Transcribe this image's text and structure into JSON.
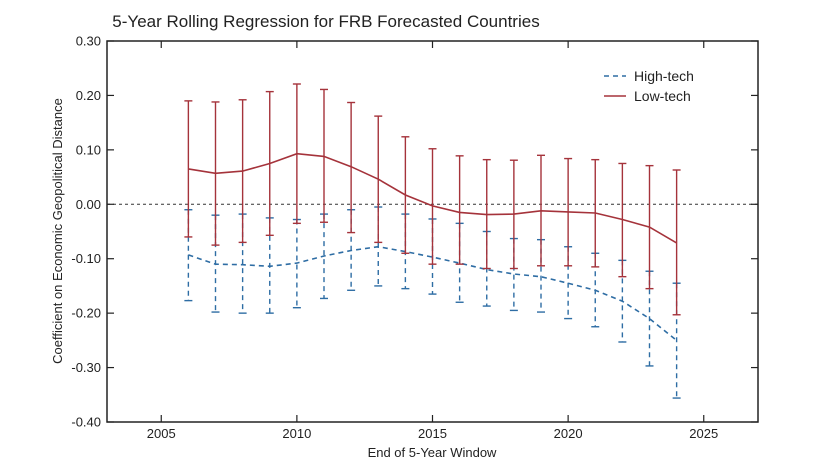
{
  "chart_data": {
    "type": "line",
    "title": "5-Year Rolling Regression for FRB Forecasted Countries",
    "xlabel": "End of 5-Year Window",
    "ylabel": "Coefficient on Economic Geopolitical Distance",
    "xlim": [
      2003,
      2027
    ],
    "ylim": [
      -0.4,
      0.3
    ],
    "x_ticks": [
      2005,
      2010,
      2015,
      2020,
      2025
    ],
    "y_ticks": [
      -0.4,
      -0.3,
      -0.2,
      -0.1,
      0.0,
      0.1,
      0.2,
      0.3
    ],
    "y_tick_labels": [
      "-0.40",
      "-0.30",
      "-0.20",
      "-0.10",
      "0.00",
      "0.10",
      "0.20",
      "0.30"
    ],
    "x": [
      2006,
      2007,
      2008,
      2009,
      2010,
      2011,
      2012,
      2013,
      2014,
      2015,
      2016,
      2017,
      2018,
      2019,
      2020,
      2021,
      2022,
      2023,
      2024
    ],
    "zero_line": true,
    "legend_position": "top-right",
    "series": [
      {
        "name": "High-tech",
        "color": "#2e6da4",
        "dash": true,
        "values": [
          -0.093,
          -0.11,
          -0.111,
          -0.114,
          -0.108,
          -0.095,
          -0.085,
          -0.078,
          -0.087,
          -0.097,
          -0.108,
          -0.12,
          -0.128,
          -0.133,
          -0.145,
          -0.158,
          -0.178,
          -0.21,
          -0.25
        ],
        "lower": [
          -0.177,
          -0.198,
          -0.2,
          -0.2,
          -0.19,
          -0.173,
          -0.158,
          -0.15,
          -0.155,
          -0.165,
          -0.18,
          -0.187,
          -0.195,
          -0.198,
          -0.21,
          -0.225,
          -0.253,
          -0.297,
          -0.356
        ],
        "upper": [
          -0.01,
          -0.02,
          -0.018,
          -0.025,
          -0.028,
          -0.018,
          -0.01,
          -0.005,
          -0.018,
          -0.027,
          -0.035,
          -0.05,
          -0.063,
          -0.065,
          -0.078,
          -0.09,
          -0.103,
          -0.123,
          -0.145
        ]
      },
      {
        "name": "Low-tech",
        "color": "#a5333b",
        "dash": false,
        "values": [
          0.065,
          0.057,
          0.061,
          0.075,
          0.093,
          0.088,
          0.069,
          0.046,
          0.017,
          -0.003,
          -0.015,
          -0.019,
          -0.018,
          -0.012,
          -0.014,
          -0.016,
          -0.028,
          -0.042,
          -0.071
        ],
        "lower": [
          -0.06,
          -0.075,
          -0.07,
          -0.057,
          -0.035,
          -0.033,
          -0.052,
          -0.07,
          -0.09,
          -0.11,
          -0.11,
          -0.118,
          -0.118,
          -0.113,
          -0.113,
          -0.115,
          -0.133,
          -0.155,
          -0.203
        ],
        "upper": [
          0.19,
          0.188,
          0.192,
          0.207,
          0.221,
          0.211,
          0.187,
          0.162,
          0.124,
          0.102,
          0.089,
          0.082,
          0.081,
          0.09,
          0.084,
          0.082,
          0.075,
          0.071,
          0.063
        ]
      }
    ]
  }
}
